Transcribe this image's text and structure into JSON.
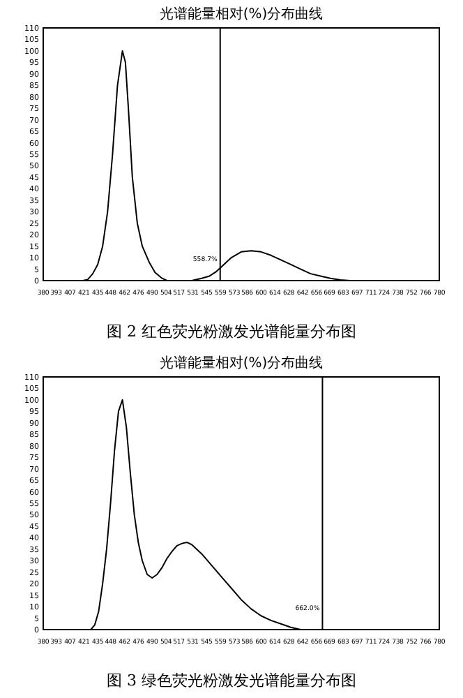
{
  "chart_data": [
    {
      "type": "line",
      "title": "光谱能量相对(%)分布曲线",
      "annotations": [
        "图 2  红色荧光粉激发光谱能量分布图"
      ],
      "x": [
        380,
        420,
        425,
        430,
        435,
        440,
        445,
        450,
        455,
        460,
        463,
        466,
        470,
        475,
        480,
        487,
        493,
        500,
        505,
        530,
        540,
        548,
        555,
        560,
        570,
        580,
        590,
        600,
        610,
        620,
        630,
        640,
        650,
        660,
        670,
        680,
        690,
        780
      ],
      "series": [
        {
          "color": "#000000",
          "values": [
            0,
            0,
            0.5,
            3,
            7,
            15,
            30,
            55,
            85,
            100,
            95,
            75,
            45,
            25,
            15,
            8,
            3.5,
            1,
            0,
            0,
            1,
            2,
            4,
            6,
            10,
            12.5,
            13,
            12.5,
            11,
            9,
            7,
            5,
            3,
            2,
            1,
            0.3,
            0,
            0
          ]
        }
      ],
      "xlim": [
        380,
        780
      ],
      "ylim": [
        0,
        110
      ],
      "xticks": [
        380,
        393,
        407,
        421,
        435,
        448,
        462,
        476,
        490,
        504,
        517,
        531,
        545,
        559,
        573,
        586,
        600,
        614,
        628,
        642,
        656,
        669,
        683,
        697,
        711,
        724,
        738,
        752,
        766,
        780
      ],
      "yticks": [
        0,
        5,
        10,
        15,
        20,
        25,
        30,
        35,
        40,
        45,
        50,
        55,
        60,
        65,
        70,
        75,
        80,
        85,
        90,
        95,
        100,
        105,
        110
      ],
      "ref_lines": [
        {
          "axis": "x",
          "value": 558.7,
          "label": "558.7%",
          "color": "#000000"
        }
      ],
      "grid": false,
      "marker": "none",
      "line_style": "solid"
    },
    {
      "type": "line",
      "title": "光谱能量相对(%)分布曲线",
      "annotations": [
        "图 3  绿色荧光粉激发光谱能量分布图"
      ],
      "x": [
        380,
        428,
        432,
        436,
        440,
        444,
        448,
        452,
        456,
        460,
        464,
        468,
        472,
        476,
        480,
        485,
        490,
        495,
        500,
        505,
        510,
        515,
        520,
        525,
        530,
        540,
        550,
        560,
        570,
        580,
        590,
        600,
        610,
        620,
        630,
        640,
        660,
        780
      ],
      "series": [
        {
          "color": "#000000",
          "values": [
            0,
            0,
            2,
            8,
            20,
            35,
            55,
            78,
            95,
            100,
            88,
            68,
            50,
            38,
            30,
            24,
            22.5,
            24,
            27,
            31,
            34,
            36.5,
            37.5,
            38,
            37,
            33,
            28,
            23,
            18,
            13,
            9,
            6,
            4,
            2.5,
            1,
            0,
            0,
            0
          ]
        }
      ],
      "xlim": [
        380,
        780
      ],
      "ylim": [
        0,
        110
      ],
      "xticks": [
        380,
        393,
        407,
        421,
        435,
        448,
        462,
        476,
        490,
        504,
        517,
        531,
        545,
        559,
        573,
        586,
        600,
        614,
        628,
        642,
        656,
        669,
        683,
        697,
        711,
        724,
        738,
        752,
        766,
        780
      ],
      "yticks": [
        0,
        5,
        10,
        15,
        20,
        25,
        30,
        35,
        40,
        45,
        50,
        55,
        60,
        65,
        70,
        75,
        80,
        85,
        90,
        95,
        100,
        105,
        110
      ],
      "ref_lines": [
        {
          "axis": "x",
          "value": 662,
          "label": "662.0%",
          "color": "#000000"
        }
      ],
      "grid": false,
      "marker": "none",
      "line_style": "solid"
    }
  ]
}
